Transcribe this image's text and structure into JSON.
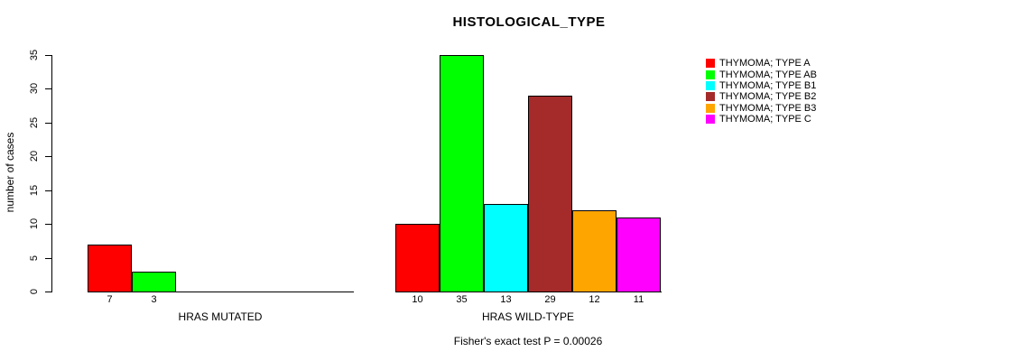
{
  "chart_data": {
    "type": "bar",
    "title": "HISTOLOGICAL_TYPE",
    "xlabel": "",
    "ylabel": "number of cases",
    "ylim": [
      0,
      35
    ],
    "yticks": [
      0,
      5,
      10,
      15,
      20,
      25,
      30,
      35
    ],
    "grid": false,
    "legend_position": "right",
    "groups": [
      {
        "label": "HRAS MUTATED",
        "slots": 6,
        "values": [
          7,
          3
        ]
      },
      {
        "label": "HRAS WILD-TYPE",
        "slots": 6,
        "values": [
          10,
          35,
          13,
          29,
          12,
          11
        ]
      }
    ],
    "series_colors": [
      "#ff0000",
      "#00ff00",
      "#00ffff",
      "#a52a2a",
      "#ffa500",
      "#ff00ff"
    ],
    "legend": [
      {
        "label": "THYMOMA; TYPE A",
        "color": "#ff0000"
      },
      {
        "label": "THYMOMA; TYPE AB",
        "color": "#00ff00"
      },
      {
        "label": "THYMOMA; TYPE B1",
        "color": "#00ffff"
      },
      {
        "label": "THYMOMA; TYPE B2",
        "color": "#a52a2a"
      },
      {
        "label": "THYMOMA; TYPE B3",
        "color": "#ffa500"
      },
      {
        "label": "THYMOMA; TYPE C",
        "color": "#ff00ff"
      }
    ],
    "annotation": "Fisher's exact test P = 0.00026"
  }
}
